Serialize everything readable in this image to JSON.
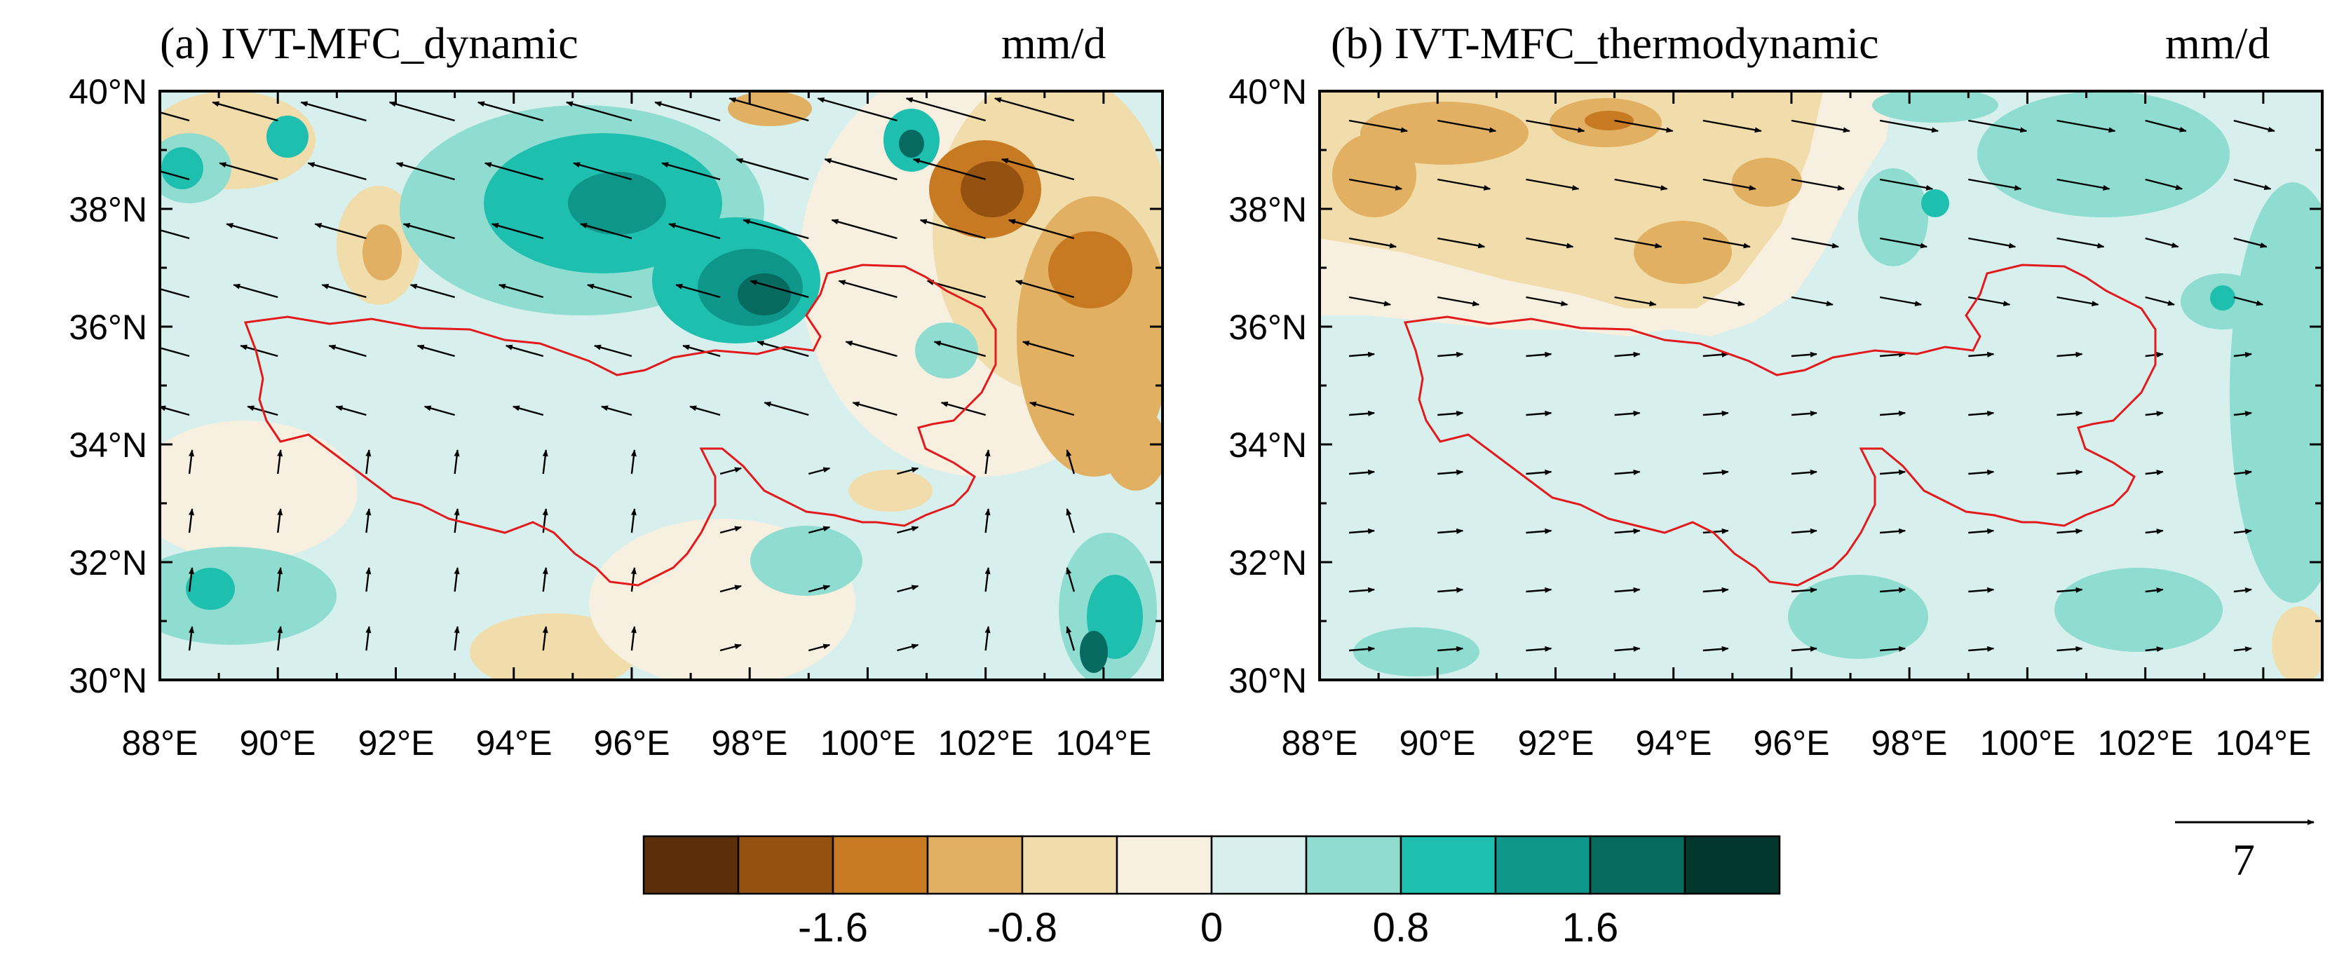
{
  "panels": [
    {
      "title": "(a) IVT-MFC_dynamic",
      "unit": "mm/d"
    },
    {
      "title": "(b) IVT-MFC_thermodynamic",
      "unit": "mm/d"
    }
  ],
  "map_extent": {
    "lon_min": 88,
    "lon_max": 105,
    "lat_min": 30,
    "lat_max": 40
  },
  "lat_ticks": [
    "40°N",
    "38°N",
    "36°N",
    "34°N",
    "32°N",
    "30°N"
  ],
  "lon_ticks": [
    "88°E",
    "90°E",
    "92°E",
    "94°E",
    "96°E",
    "98°E",
    "100°E",
    "102°E",
    "104°E"
  ],
  "colorbar": {
    "colors": [
      "#5c2f0a",
      "#955110",
      "#c77a22",
      "#e2b062",
      "#f1dcac",
      "#f7efe0",
      "#d7f0ed",
      "#8fdcd1",
      "#1ebfae",
      "#0f968a",
      "#066a60",
      "#02372f"
    ],
    "labels": [
      "-1.6",
      "-0.8",
      "0",
      "0.8",
      "1.6"
    ]
  },
  "reference_vector": {
    "label": "7"
  },
  "colors": {
    "boundary": "#e31a1c",
    "vector": "#000000"
  }
}
